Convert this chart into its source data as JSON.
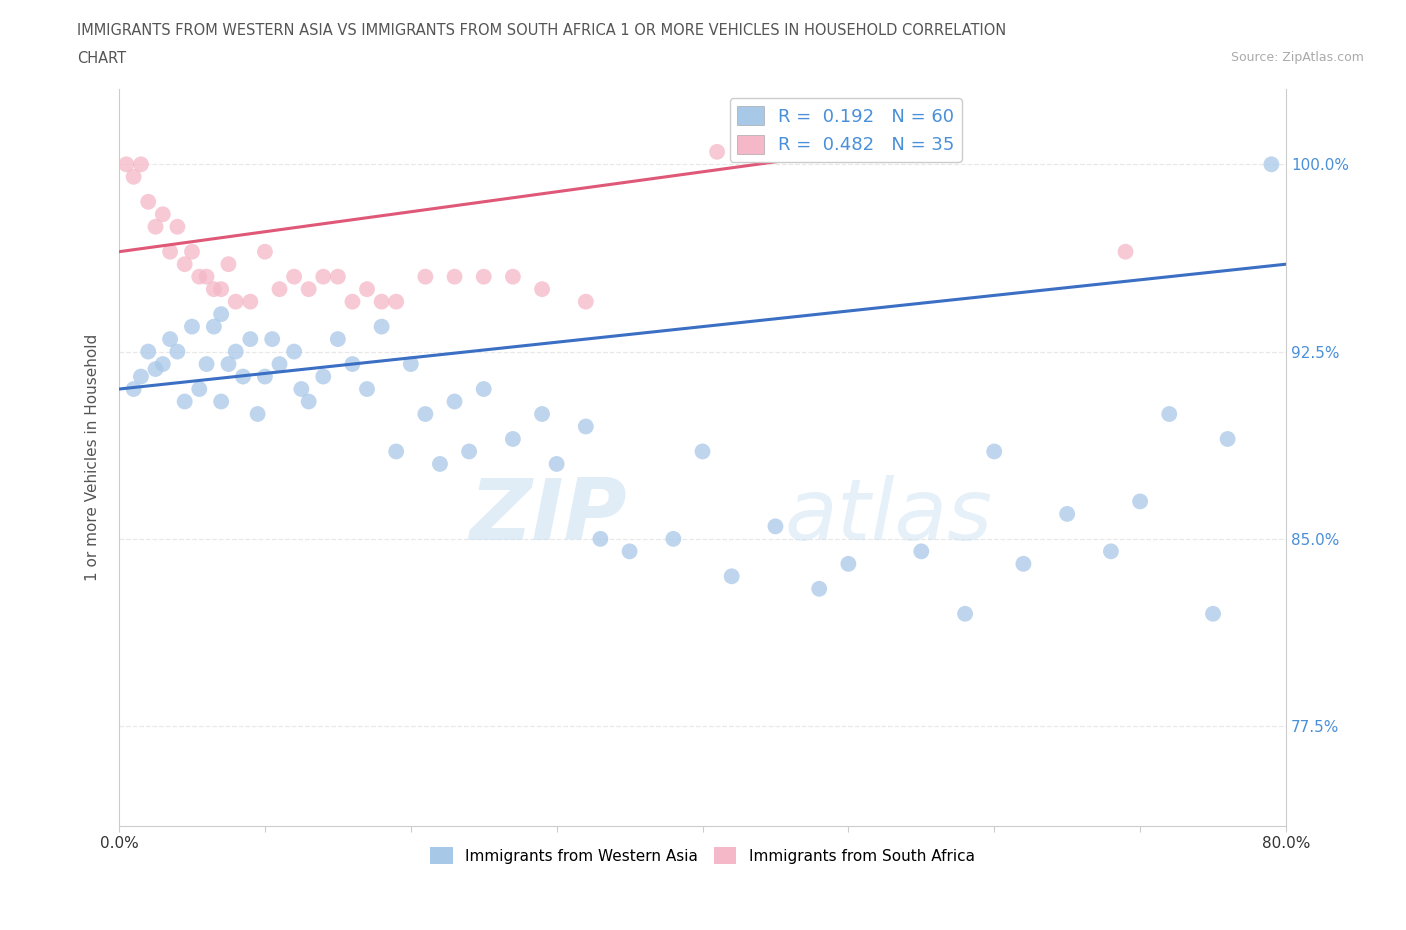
{
  "title_line1": "IMMIGRANTS FROM WESTERN ASIA VS IMMIGRANTS FROM SOUTH AFRICA 1 OR MORE VEHICLES IN HOUSEHOLD CORRELATION",
  "title_line2": "CHART",
  "source": "Source: ZipAtlas.com",
  "ylabel": "1 or more Vehicles in Household",
  "xlim": [
    0.0,
    80.0
  ],
  "ylim": [
    73.5,
    103.0
  ],
  "yticks": [
    77.5,
    85.0,
    92.5,
    100.0
  ],
  "ytick_labels": [
    "77.5%",
    "85.0%",
    "92.5%",
    "100.0%"
  ],
  "xticks": [
    0.0,
    10.0,
    20.0,
    30.0,
    40.0,
    50.0,
    60.0,
    70.0,
    80.0
  ],
  "xtick_labels": [
    "0.0%",
    "",
    "",
    "",
    "",
    "",
    "",
    "",
    "80.0%"
  ],
  "legend_r1": "R =  0.192",
  "legend_n1": "N = 60",
  "legend_r2": "R =  0.482",
  "legend_n2": "N = 35",
  "blue_color": "#a8c8e8",
  "pink_color": "#f4b8c8",
  "blue_line_color": "#3a6fc4",
  "pink_line_color": "#e05878",
  "legend_text_color": "#4a90d9",
  "title_color": "#555555",
  "source_color": "#aaaaaa",
  "grid_color": "#e8e8e8",
  "grid_style": "--",
  "blue_scatter_x": [
    1.0,
    1.5,
    2.0,
    2.5,
    3.0,
    3.5,
    4.0,
    4.5,
    5.0,
    5.5,
    6.0,
    6.5,
    7.0,
    7.0,
    7.5,
    8.0,
    8.5,
    9.0,
    9.5,
    10.0,
    10.5,
    11.0,
    12.0,
    12.5,
    13.0,
    14.0,
    15.0,
    16.0,
    17.0,
    18.0,
    19.0,
    20.0,
    21.0,
    22.0,
    23.0,
    24.0,
    25.0,
    27.0,
    29.0,
    30.0,
    32.0,
    33.0,
    35.0,
    38.0,
    40.0,
    42.0,
    45.0,
    48.0,
    50.0,
    55.0,
    58.0,
    60.0,
    62.0,
    65.0,
    68.0,
    70.0,
    72.0,
    75.0,
    76.0,
    79.0
  ],
  "blue_scatter_y": [
    91.0,
    91.5,
    92.5,
    91.8,
    92.0,
    93.0,
    92.5,
    90.5,
    93.5,
    91.0,
    92.0,
    93.5,
    94.0,
    90.5,
    92.0,
    92.5,
    91.5,
    93.0,
    90.0,
    91.5,
    93.0,
    92.0,
    92.5,
    91.0,
    90.5,
    91.5,
    93.0,
    92.0,
    91.0,
    93.5,
    88.5,
    92.0,
    90.0,
    88.0,
    90.5,
    88.5,
    91.0,
    89.0,
    90.0,
    88.0,
    89.5,
    85.0,
    84.5,
    85.0,
    88.5,
    83.5,
    85.5,
    83.0,
    84.0,
    84.5,
    82.0,
    88.5,
    84.0,
    86.0,
    84.5,
    86.5,
    90.0,
    82.0,
    89.0,
    100.0
  ],
  "pink_scatter_x": [
    0.5,
    1.0,
    1.5,
    2.0,
    2.5,
    3.0,
    3.5,
    4.0,
    4.5,
    5.0,
    5.5,
    6.0,
    6.5,
    7.0,
    7.5,
    8.0,
    9.0,
    10.0,
    11.0,
    12.0,
    13.0,
    14.0,
    15.0,
    16.0,
    17.0,
    18.0,
    19.0,
    21.0,
    23.0,
    25.0,
    27.0,
    29.0,
    32.0,
    41.0,
    69.0
  ],
  "pink_scatter_y": [
    100.0,
    99.5,
    100.0,
    98.5,
    97.5,
    98.0,
    96.5,
    97.5,
    96.0,
    96.5,
    95.5,
    95.5,
    95.0,
    95.0,
    96.0,
    94.5,
    94.5,
    96.5,
    95.0,
    95.5,
    95.0,
    95.5,
    95.5,
    94.5,
    95.0,
    94.5,
    94.5,
    95.5,
    95.5,
    95.5,
    95.5,
    95.0,
    94.5,
    100.5,
    96.5
  ],
  "blue_trend_x": [
    0.0,
    80.0
  ],
  "blue_trend_y": [
    91.0,
    96.0
  ],
  "pink_trend_x": [
    0.0,
    50.0
  ],
  "pink_trend_y": [
    96.5,
    100.5
  ],
  "watermark_zip": "ZIP",
  "watermark_atlas": "atlas",
  "bottom_legend_labels": [
    "Immigrants from Western Asia",
    "Immigrants from South Africa"
  ]
}
